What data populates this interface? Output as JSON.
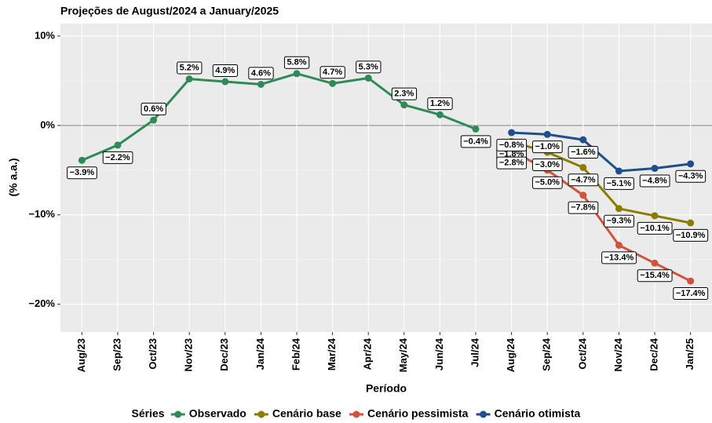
{
  "chart_data": {
    "type": "line",
    "title": "Projeções de August/2024 a January/2025",
    "x_label": "Período",
    "y_label": "(% a.a.)",
    "legend_title": "Séries",
    "grid": true,
    "categories": [
      "Aug/23",
      "Sep/23",
      "Oct/23",
      "Nov/23",
      "Dec/23",
      "Jan/24",
      "Feb/24",
      "Mar/24",
      "Apr/24",
      "May/24",
      "Jun/24",
      "Jul/24",
      "Aug/24",
      "Sep/24",
      "Oct/24",
      "Nov/24",
      "Dec/24",
      "Jan/25"
    ],
    "ylim": [
      -23.1,
      11.4
    ],
    "yticks": [
      {
        "value": 10,
        "label": "10%"
      },
      {
        "value": 0,
        "label": "0%"
      },
      {
        "value": -10,
        "label": "−10%"
      },
      {
        "value": -20,
        "label": "−20%"
      }
    ],
    "series": [
      {
        "name": "Observado",
        "color": "#2e8b57",
        "values": [
          -3.9,
          -2.2,
          0.6,
          5.2,
          4.9,
          4.6,
          5.8,
          4.7,
          5.3,
          2.3,
          1.2,
          -0.4,
          null,
          null,
          null,
          null,
          null,
          null
        ],
        "value_labels": [
          "−3.9%",
          "−2.2%",
          "0.6%",
          "5.2%",
          "4.9%",
          "4.6%",
          "5.8%",
          "4.7%",
          "5.3%",
          "2.3%",
          "1.2%",
          "−0.4%",
          null,
          null,
          null,
          null,
          null,
          null
        ]
      },
      {
        "name": "Cenário base",
        "color": "#8b7d00",
        "values": [
          null,
          null,
          null,
          null,
          null,
          null,
          null,
          null,
          null,
          null,
          null,
          null,
          -1.8,
          -3.0,
          -4.7,
          -9.3,
          -10.1,
          -10.9
        ],
        "value_labels": [
          null,
          null,
          null,
          null,
          null,
          null,
          null,
          null,
          null,
          null,
          null,
          null,
          "−1.8%",
          "−3.0%",
          "−4.7%",
          "−9.3%",
          "−10.1%",
          "−10.9%"
        ]
      },
      {
        "name": "Cenário pessimista",
        "color": "#d0533a",
        "values": [
          null,
          null,
          null,
          null,
          null,
          null,
          null,
          null,
          null,
          null,
          null,
          null,
          -2.8,
          -5.0,
          -7.8,
          -13.4,
          -15.4,
          -17.4
        ],
        "value_labels": [
          null,
          null,
          null,
          null,
          null,
          null,
          null,
          null,
          null,
          null,
          null,
          null,
          "−2.8%",
          "−5.0%",
          "−7.8%",
          "−13.4%",
          "−15.4%",
          "−17.4%"
        ]
      },
      {
        "name": "Cenário otimista",
        "color": "#1f4e8c",
        "values": [
          null,
          null,
          null,
          null,
          null,
          null,
          null,
          null,
          null,
          null,
          null,
          null,
          -0.8,
          -1.0,
          -1.6,
          -5.1,
          -4.8,
          -4.3
        ],
        "value_labels": [
          null,
          null,
          null,
          null,
          null,
          null,
          null,
          null,
          null,
          null,
          null,
          null,
          "−0.8%",
          "−1.0%",
          "−1.6%",
          "−5.1%",
          "−4.8%",
          "−4.3%"
        ]
      }
    ]
  }
}
